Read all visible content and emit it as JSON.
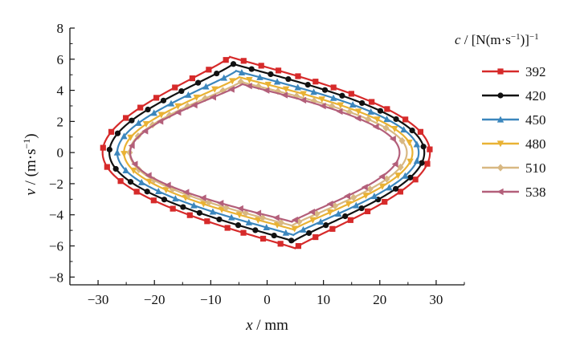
{
  "chart_data": {
    "type": "line",
    "xlabel": {
      "var": "x",
      "unit": " / mm"
    },
    "ylabel": {
      "var": "v",
      "unit": " / (m·s",
      "sup": "−1",
      "close": ")"
    },
    "xlim": [
      -35,
      35
    ],
    "ylim": [
      -8.5,
      8
    ],
    "xticks": [
      -30,
      -20,
      -10,
      0,
      10,
      20,
      30
    ],
    "yticks": [
      -8,
      -6,
      -4,
      -2,
      0,
      2,
      4,
      6,
      8
    ],
    "legend": {
      "title": {
        "var": "c",
        "text": " / [N(m·s",
        "sup1": "−1",
        "mid": ")]",
        "sup2": "−1"
      },
      "placement": "right"
    },
    "series": [
      {
        "name": "392",
        "color": "#d62a2a",
        "marker": "square",
        "params": {
          "Xmax": 28.9,
          "Xmin": -29.2,
          "Top": 6.15,
          "Bot": -6.15,
          "Xtop": -12.0,
          "Xbot": 9.0,
          "Ymax": 0.5
        }
      },
      {
        "name": "420",
        "color": "#111111",
        "marker": "circle",
        "params": {
          "Xmax": 27.9,
          "Xmin": -28.0,
          "Top": 5.7,
          "Bot": -5.7,
          "Xtop": -11.0,
          "Xbot": 8.5,
          "Ymax": 0.45
        }
      },
      {
        "name": "450",
        "color": "#3b86bd",
        "marker": "triangle-up",
        "params": {
          "Xmax": 26.9,
          "Xmin": -26.6,
          "Top": 5.25,
          "Bot": -5.3,
          "Xtop": -10.0,
          "Xbot": 8.5,
          "Ymax": 0.4
        }
      },
      {
        "name": "480",
        "color": "#e9b234",
        "marker": "triangle-down",
        "params": {
          "Xmax": 25.8,
          "Xmin": -25.4,
          "Top": 4.85,
          "Bot": -4.95,
          "Xtop": -9.0,
          "Xbot": 8.5,
          "Ymax": 0.3
        }
      },
      {
        "name": "510",
        "color": "#d8b882",
        "marker": "diamond",
        "params": {
          "Xmax": 24.8,
          "Xmin": -24.4,
          "Top": 4.55,
          "Bot": -4.7,
          "Xtop": -8.5,
          "Xbot": 8.0,
          "Ymax": 0.25
        }
      },
      {
        "name": "538",
        "color": "#b35f7a",
        "marker": "triangle-left",
        "params": {
          "Xmax": 23.5,
          "Xmin": -24.3,
          "Top": 4.4,
          "Bot": -4.45,
          "Xtop": -8.0,
          "Xbot": 8.0,
          "Ymax": 0.2
        }
      }
    ]
  }
}
